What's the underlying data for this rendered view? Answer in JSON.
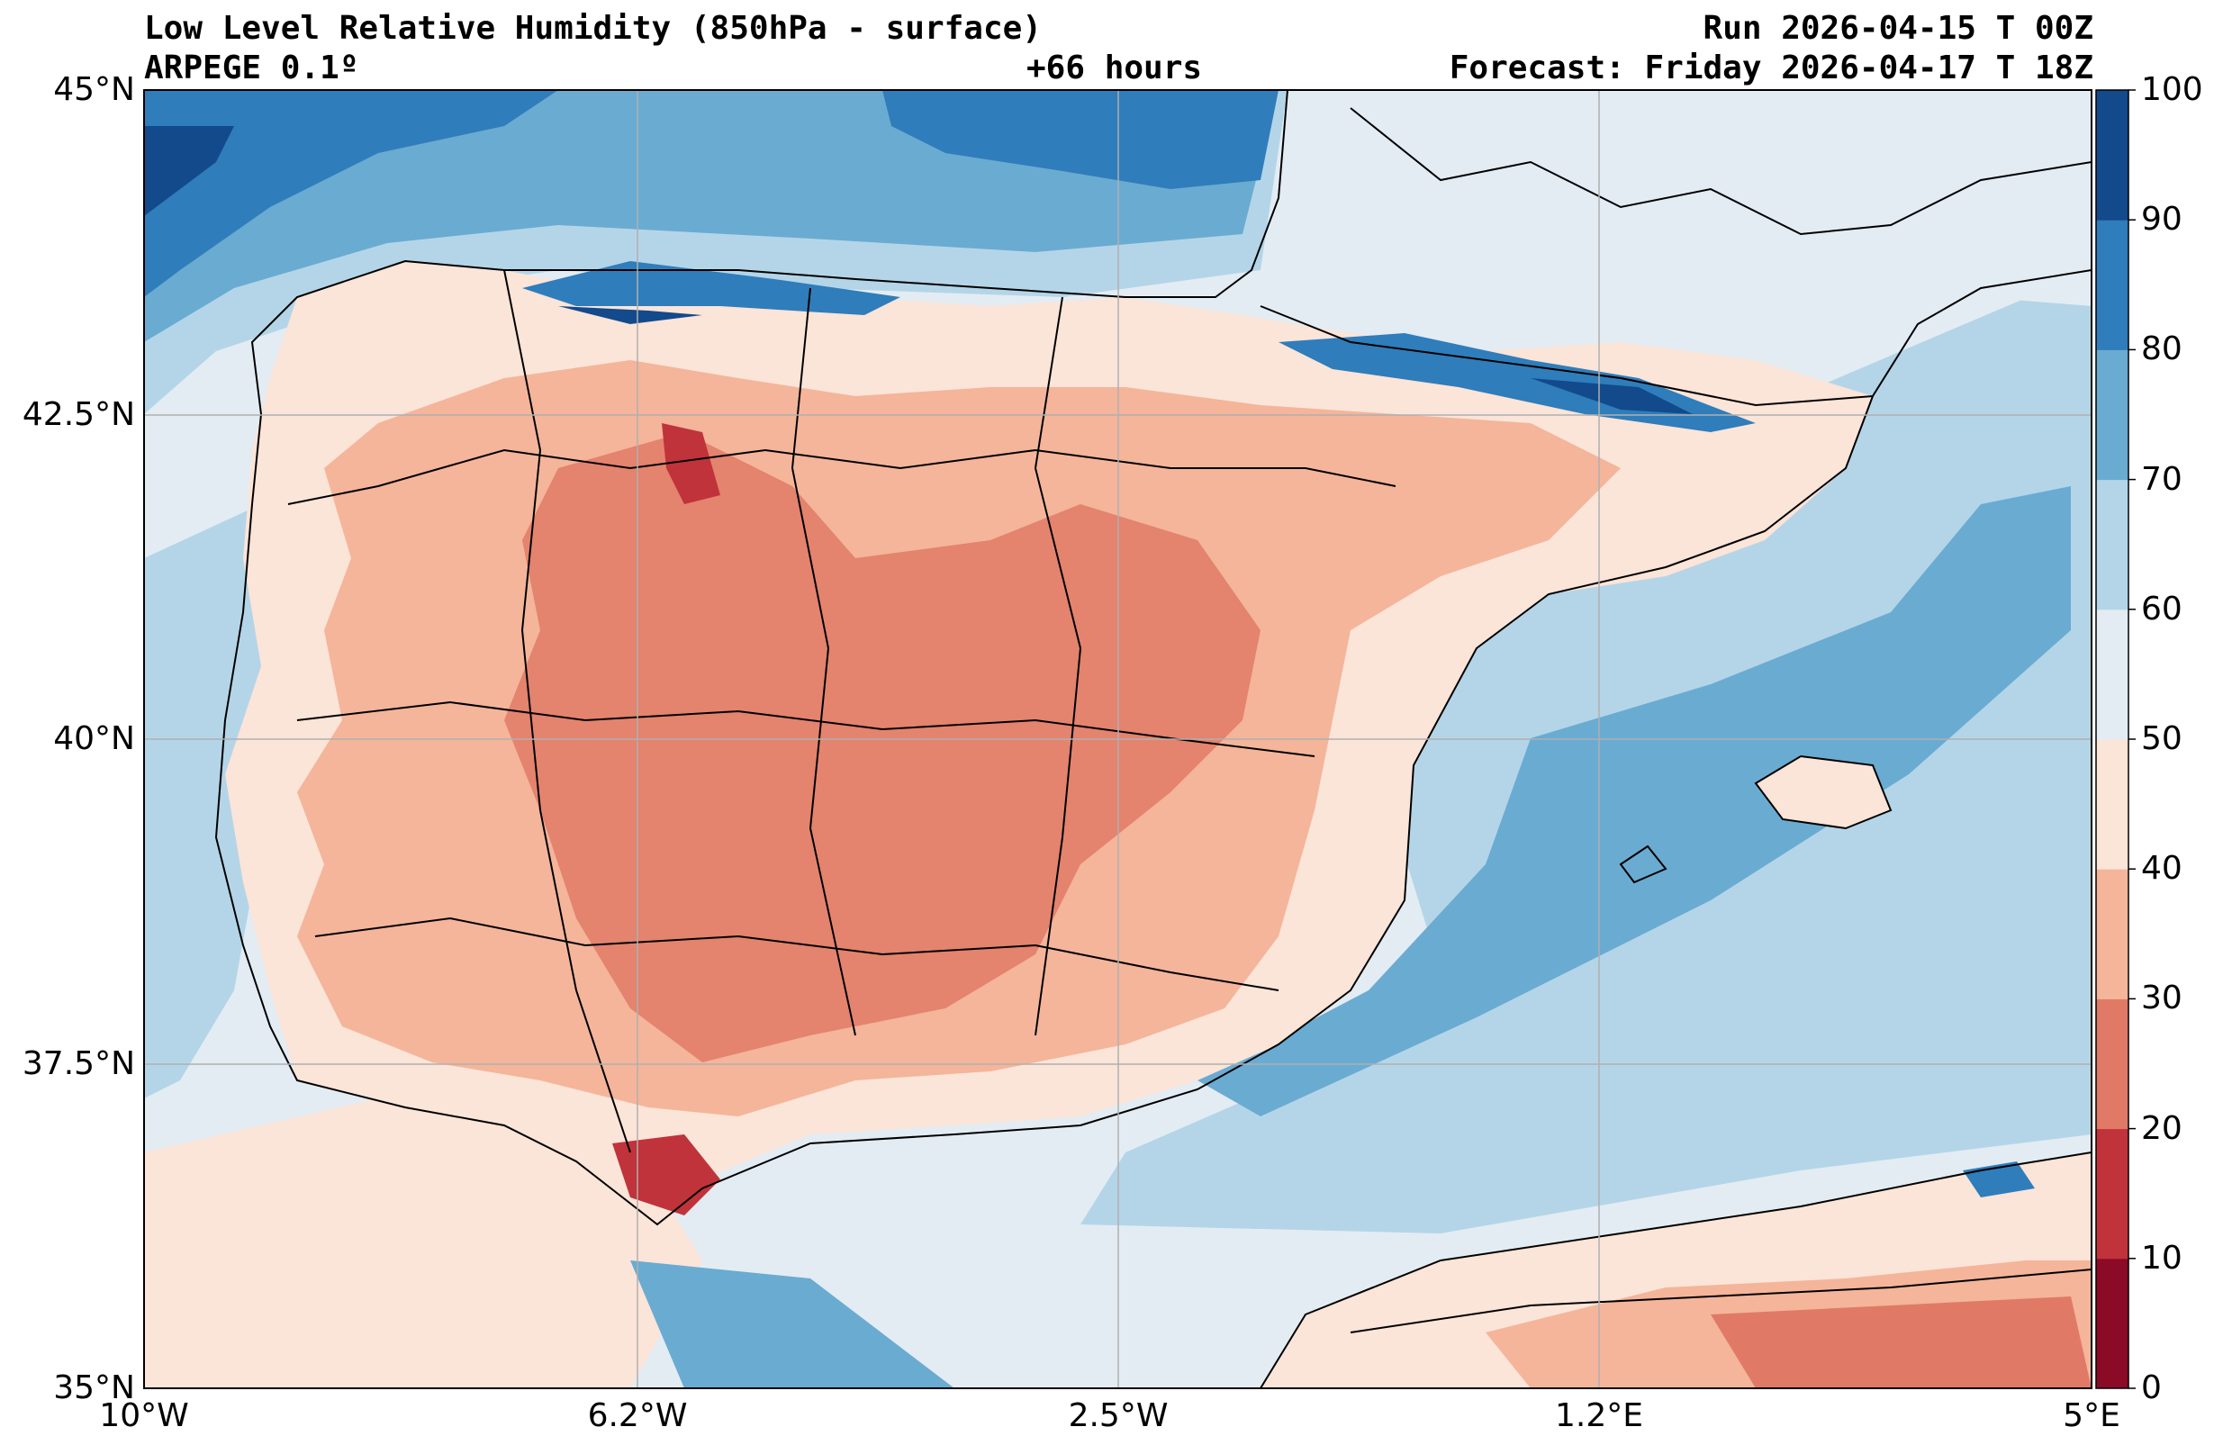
{
  "title": {
    "main": "Low Level Relative Humidity (850hPa - surface)",
    "model": "ARPEGE 0.1º",
    "lead": "+66 hours",
    "run": "Run 2026-04-15 T 00Z",
    "forecast": "Forecast: Friday 2026-04-17 T 18Z"
  },
  "map": {
    "region": "Iberian Peninsula, Balearic Islands and North Africa",
    "variable": "Relative humidity (%)",
    "lat_labels": [
      "45°N",
      "42.5°N",
      "40°N",
      "37.5°N",
      "35°N"
    ],
    "lon_labels": [
      "10°W",
      "6.2°W",
      "2.5°W",
      "1.2°E",
      "5°E"
    ],
    "extent": {
      "lon_min": -10,
      "lon_max": 5,
      "lat_min": 35,
      "lat_max": 45
    }
  },
  "colorbar": {
    "ticks": [
      "0",
      "10",
      "20",
      "30",
      "40",
      "50",
      "60",
      "70",
      "80",
      "90",
      "100"
    ],
    "colors": [
      "#8b0a26",
      "#c0333a",
      "#e07a66",
      "#f4b59a",
      "#fbe4d8",
      "#e3ecf3",
      "#b4d5e8",
      "#6aabd2",
      "#2f7dbb",
      "#124a8b"
    ]
  },
  "colors": {
    "sea_mid": "#b4d5e8",
    "sea_light": "#e3ecf3",
    "land_dry": "#f4b59a",
    "land_very_dry": "#e07a66",
    "grid": "#b0b0b0",
    "borders": "#000000"
  }
}
